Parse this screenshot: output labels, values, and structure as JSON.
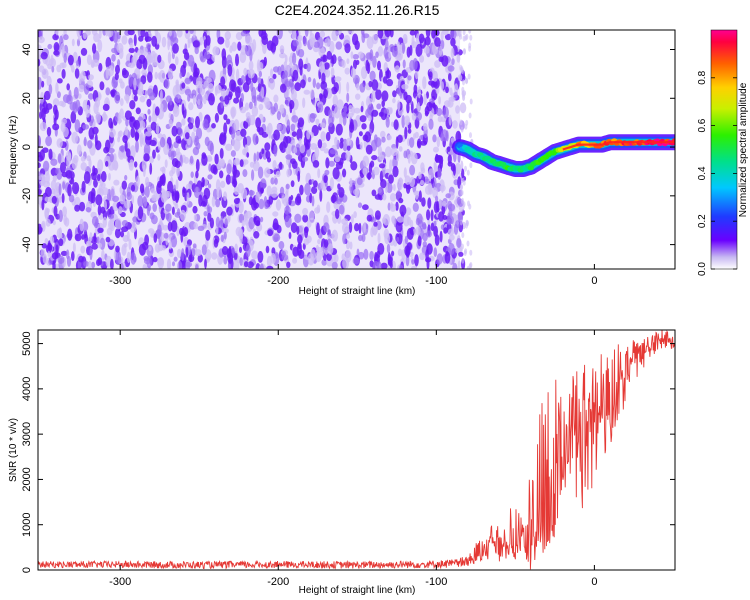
{
  "title": "C2E4.2024.352.11.26.R15",
  "colors": {
    "background": "#ffffff",
    "spectro_low": "#b39ddb",
    "spectro_mid": "#7b2ff7",
    "snr_line": "#e53935",
    "axis": "#000000"
  },
  "chart_data": [
    {
      "type": "heatmap",
      "title": "C2E4.2024.352.11.26.R15",
      "xlabel": "Height of straight line (km)",
      "ylabel": "Frequency (Hz)",
      "xlim": [
        -352,
        51
      ],
      "ylim": [
        -50,
        48
      ],
      "x_ticks": [
        -300,
        -200,
        -100,
        0
      ],
      "y_ticks": [
        -40,
        -20,
        0,
        20,
        40
      ],
      "noise_region_x": [
        -352,
        -85
      ],
      "signal_trace": {
        "x": [
          -85,
          -80,
          -75,
          -70,
          -65,
          -60,
          -55,
          -50,
          -45,
          -40,
          -35,
          -30,
          -25,
          -20,
          -15,
          -10,
          -5,
          0,
          5,
          10,
          15,
          20,
          25,
          30,
          35,
          40,
          45,
          51
        ],
        "freq": [
          0,
          -1,
          -3,
          -4,
          -6,
          -7,
          -8,
          -9,
          -9,
          -8,
          -6,
          -4,
          -2,
          -1,
          0,
          1,
          1,
          1,
          1,
          2,
          2,
          2,
          2,
          2,
          2,
          2,
          2,
          2
        ],
        "amplitude": [
          0.3,
          0.4,
          0.45,
          0.5,
          0.5,
          0.5,
          0.55,
          0.5,
          0.5,
          0.55,
          0.6,
          0.6,
          0.65,
          0.7,
          0.75,
          0.85,
          0.8,
          0.9,
          0.95,
          0.9,
          0.95,
          1.0,
          0.95,
          0.95,
          1.0,
          1.0,
          1.0,
          1.0
        ]
      },
      "colorbar": {
        "label": "Normalized spectral amplitude",
        "range": [
          0,
          1
        ],
        "ticks": [
          "0.0",
          "0.2",
          "0.4",
          "0.6",
          "0.8"
        ],
        "tick_values": [
          0,
          0.2,
          0.4,
          0.6,
          0.8
        ]
      }
    },
    {
      "type": "line",
      "xlabel": "Height of straight line (km)",
      "ylabel": "SNR (10 * v/v)",
      "xlim": [
        -352,
        51
      ],
      "ylim": [
        0,
        5300
      ],
      "x_ticks": [
        -300,
        -200,
        -100,
        0
      ],
      "y_ticks": [
        0,
        1000,
        2000,
        3000,
        4000,
        5000
      ],
      "series": [
        {
          "x": [
            -352,
            -300,
            -250,
            -200,
            -150,
            -100,
            -80,
            -75,
            -70,
            -65,
            -60,
            -55,
            -50,
            -45,
            -40,
            -35,
            -30,
            -25,
            -20,
            -15,
            -10,
            -5,
            0,
            5,
            10,
            15,
            20,
            25,
            30,
            35,
            40,
            45,
            51
          ],
          "y": [
            120,
            120,
            110,
            120,
            110,
            130,
            150,
            300,
            500,
            600,
            500,
            700,
            600,
            800,
            500,
            1000,
            1600,
            2000,
            2500,
            2700,
            3000,
            3200,
            3300,
            3500,
            3800,
            4100,
            4400,
            4600,
            4800,
            4900,
            5000,
            5100,
            5000
          ],
          "envelope_high": [
            200,
            210,
            220,
            210,
            220,
            230,
            300,
            600,
            900,
            1000,
            1100,
            1300,
            1500,
            1200,
            2300,
            3500,
            4200,
            4700,
            4000,
            4400,
            4500,
            4600,
            4700,
            4800,
            4900,
            5000,
            5100,
            5100,
            5200,
            5200,
            5300,
            5300,
            5200
          ],
          "envelope_low": [
            40,
            40,
            40,
            40,
            40,
            40,
            60,
            100,
            150,
            200,
            150,
            250,
            200,
            300,
            100,
            300,
            400,
            600,
            800,
            1000,
            1200,
            1500,
            1800,
            2200,
            2700,
            3200,
            3700,
            4100,
            4400,
            4600,
            4800,
            4900,
            4800
          ]
        }
      ]
    }
  ]
}
